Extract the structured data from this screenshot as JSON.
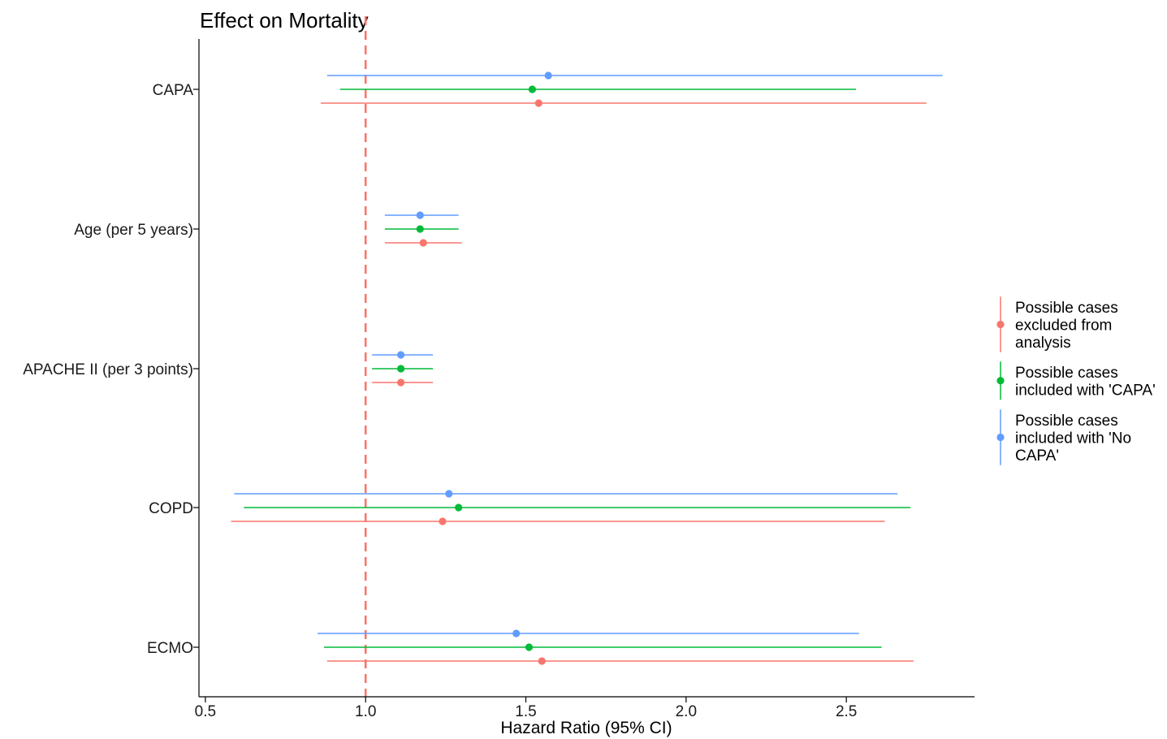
{
  "chart_data": {
    "type": "forest",
    "title": "Effect on Mortality",
    "xlabel": "Hazard Ratio (95% CI)",
    "ylabel": "",
    "xlim": [
      0.48,
      2.9
    ],
    "x_ticks": [
      0.5,
      1.0,
      1.5,
      2.0,
      2.5
    ],
    "x_tick_labels": [
      "0.5",
      "1.0",
      "1.5",
      "2.0",
      "2.5"
    ],
    "reference_line": {
      "x": 1.0,
      "style": "dashed",
      "color": "#F8766D"
    },
    "grid": false,
    "legend_position": "right",
    "categories": [
      "CAPA",
      "Age (per 5 years)",
      "APACHE II (per 3 points)",
      "COPD",
      "ECMO"
    ],
    "series": [
      {
        "name": "Possible cases excluded from analysis",
        "legend_lines": [
          "Possible cases",
          "excluded from",
          "analysis"
        ],
        "color": "#F8766D",
        "estimates": [
          1.54,
          1.18,
          1.11,
          1.24,
          1.55
        ],
        "lower": [
          0.86,
          1.06,
          1.02,
          0.58,
          0.88
        ],
        "upper": [
          2.75,
          1.3,
          1.21,
          2.62,
          2.71
        ]
      },
      {
        "name": "Possible cases included with 'CAPA'",
        "legend_lines": [
          "Possible cases",
          "included with 'CAPA'"
        ],
        "color": "#00BA38",
        "estimates": [
          1.52,
          1.17,
          1.11,
          1.29,
          1.51
        ],
        "lower": [
          0.92,
          1.06,
          1.02,
          0.62,
          0.87
        ],
        "upper": [
          2.53,
          1.29,
          1.21,
          2.7,
          2.61
        ]
      },
      {
        "name": "Possible cases included with 'No CAPA'",
        "legend_lines": [
          "Possible cases",
          "included with 'No",
          "CAPA'"
        ],
        "color": "#619CFF",
        "estimates": [
          1.57,
          1.17,
          1.11,
          1.26,
          1.47
        ],
        "lower": [
          0.88,
          1.06,
          1.02,
          0.59,
          0.85
        ],
        "upper": [
          2.8,
          1.29,
          1.21,
          2.66,
          2.54
        ]
      }
    ]
  }
}
